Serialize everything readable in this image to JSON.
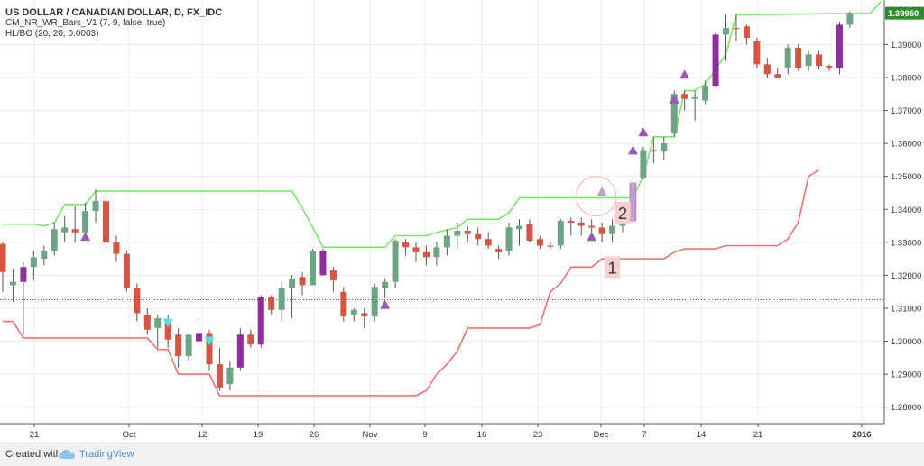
{
  "legend": {
    "title": "US DOLLAR / CANADIAN DOLLAR, D, FX_IDC",
    "line2": "CM_NR_WR_Bars_V1 (7, 9, false, true)",
    "line3": "HL/BO (20, 20, 0.0003)"
  },
  "footer": {
    "created": "Created with",
    "brand": "TradingView"
  },
  "colors": {
    "up": "#6ba583",
    "down": "#d75442",
    "narrow": "#8e2e9c",
    "wick": "#555555",
    "highline": "#77e86b",
    "lowline": "#f07070",
    "marker": "#9b59b6",
    "marker_light": "#c39bd3",
    "cyan": "#4fe0e8",
    "price_label": "#2c8c2c"
  },
  "chart_data": {
    "type": "candlestick",
    "x_ticks": [
      "21",
      "Oct",
      "12",
      "19",
      "26",
      "Nov",
      "9",
      "16",
      "23",
      "Dec",
      "7",
      "14",
      "21",
      "2016"
    ],
    "ylim": [
      1.275,
      1.4035
    ],
    "y_ticks": [
      "1.28000",
      "1.29000",
      "1.30000",
      "1.31000",
      "1.32000",
      "1.33000",
      "1.34000",
      "1.35000",
      "1.36000",
      "1.37000",
      "1.38000",
      "1.39000"
    ],
    "last_price": "1.39950",
    "hline": 1.3126,
    "candles": [
      {
        "o": 1.3295,
        "h": 1.33,
        "l": 1.315,
        "c": 1.321,
        "k": "down"
      },
      {
        "o": 1.317,
        "h": 1.322,
        "l": 1.312,
        "c": 1.318,
        "k": "up"
      },
      {
        "o": 1.318,
        "h": 1.324,
        "l": 1.302,
        "c": 1.3225,
        "k": "narrow"
      },
      {
        "o": 1.3225,
        "h": 1.3275,
        "l": 1.3185,
        "c": 1.3255,
        "k": "up"
      },
      {
        "o": 1.325,
        "h": 1.329,
        "l": 1.323,
        "c": 1.3275,
        "k": "up"
      },
      {
        "o": 1.3275,
        "h": 1.336,
        "l": 1.326,
        "c": 1.334,
        "k": "up"
      },
      {
        "o": 1.333,
        "h": 1.338,
        "l": 1.33,
        "c": 1.3345,
        "k": "up"
      },
      {
        "o": 1.334,
        "h": 1.341,
        "l": 1.33,
        "c": 1.333,
        "k": "down"
      },
      {
        "o": 1.333,
        "h": 1.342,
        "l": 1.331,
        "c": 1.3395,
        "k": "up"
      },
      {
        "o": 1.3395,
        "h": 1.346,
        "l": 1.336,
        "c": 1.3425,
        "k": "up"
      },
      {
        "o": 1.3425,
        "h": 1.343,
        "l": 1.328,
        "c": 1.33,
        "k": "down"
      },
      {
        "o": 1.33,
        "h": 1.332,
        "l": 1.324,
        "c": 1.3265,
        "k": "down"
      },
      {
        "o": 1.3265,
        "h": 1.3275,
        "l": 1.315,
        "c": 1.316,
        "k": "down"
      },
      {
        "o": 1.316,
        "h": 1.3175,
        "l": 1.306,
        "c": 1.3085,
        "k": "down"
      },
      {
        "o": 1.308,
        "h": 1.31,
        "l": 1.302,
        "c": 1.3035,
        "k": "down"
      },
      {
        "o": 1.304,
        "h": 1.308,
        "l": 1.298,
        "c": 1.307,
        "k": "up"
      },
      {
        "o": 1.3065,
        "h": 1.308,
        "l": 1.298,
        "c": 1.3005,
        "k": "down"
      },
      {
        "o": 1.302,
        "h": 1.304,
        "l": 1.292,
        "c": 1.2955,
        "k": "down"
      },
      {
        "o": 1.2955,
        "h": 1.302,
        "l": 1.294,
        "c": 1.302,
        "k": "up"
      },
      {
        "o": 1.3025,
        "h": 1.307,
        "l": 1.3,
        "c": 1.3,
        "k": "narrow"
      },
      {
        "o": 1.3025,
        "h": 1.3035,
        "l": 1.291,
        "c": 1.293,
        "k": "down"
      },
      {
        "o": 1.293,
        "h": 1.298,
        "l": 1.285,
        "c": 1.286,
        "k": "down"
      },
      {
        "o": 1.287,
        "h": 1.294,
        "l": 1.285,
        "c": 1.292,
        "k": "up"
      },
      {
        "o": 1.292,
        "h": 1.304,
        "l": 1.291,
        "c": 1.302,
        "k": "narrow"
      },
      {
        "o": 1.302,
        "h": 1.3035,
        "l": 1.298,
        "c": 1.299,
        "k": "down"
      },
      {
        "o": 1.299,
        "h": 1.314,
        "l": 1.298,
        "c": 1.3135,
        "k": "narrow"
      },
      {
        "o": 1.3135,
        "h": 1.314,
        "l": 1.308,
        "c": 1.3095,
        "k": "down"
      },
      {
        "o": 1.3095,
        "h": 1.318,
        "l": 1.306,
        "c": 1.316,
        "k": "up"
      },
      {
        "o": 1.316,
        "h": 1.32,
        "l": 1.307,
        "c": 1.319,
        "k": "up"
      },
      {
        "o": 1.3195,
        "h": 1.321,
        "l": 1.314,
        "c": 1.317,
        "k": "down"
      },
      {
        "o": 1.317,
        "h": 1.328,
        "l": 1.317,
        "c": 1.3275,
        "k": "up"
      },
      {
        "o": 1.3275,
        "h": 1.328,
        "l": 1.32,
        "c": 1.32,
        "k": "narrow"
      },
      {
        "o": 1.3215,
        "h": 1.3225,
        "l": 1.315,
        "c": 1.3185,
        "k": "down"
      },
      {
        "o": 1.315,
        "h": 1.3165,
        "l": 1.306,
        "c": 1.3075,
        "k": "down"
      },
      {
        "o": 1.308,
        "h": 1.31,
        "l": 1.306,
        "c": 1.3095,
        "k": "up"
      },
      {
        "o": 1.3085,
        "h": 1.31,
        "l": 1.304,
        "c": 1.3075,
        "k": "down"
      },
      {
        "o": 1.3075,
        "h": 1.3175,
        "l": 1.306,
        "c": 1.3165,
        "k": "up"
      },
      {
        "o": 1.316,
        "h": 1.319,
        "l": 1.313,
        "c": 1.318,
        "k": "up"
      },
      {
        "o": 1.318,
        "h": 1.331,
        "l": 1.316,
        "c": 1.3305,
        "k": "up"
      },
      {
        "o": 1.33,
        "h": 1.331,
        "l": 1.326,
        "c": 1.3285,
        "k": "down"
      },
      {
        "o": 1.3285,
        "h": 1.33,
        "l": 1.324,
        "c": 1.327,
        "k": "down"
      },
      {
        "o": 1.327,
        "h": 1.329,
        "l": 1.323,
        "c": 1.3255,
        "k": "down"
      },
      {
        "o": 1.3255,
        "h": 1.33,
        "l": 1.323,
        "c": 1.3285,
        "k": "up"
      },
      {
        "o": 1.3285,
        "h": 1.334,
        "l": 1.326,
        "c": 1.332,
        "k": "up"
      },
      {
        "o": 1.332,
        "h": 1.336,
        "l": 1.328,
        "c": 1.3335,
        "k": "up"
      },
      {
        "o": 1.3335,
        "h": 1.335,
        "l": 1.33,
        "c": 1.3325,
        "k": "down"
      },
      {
        "o": 1.3325,
        "h": 1.3345,
        "l": 1.329,
        "c": 1.331,
        "k": "down"
      },
      {
        "o": 1.331,
        "h": 1.333,
        "l": 1.328,
        "c": 1.329,
        "k": "down"
      },
      {
        "o": 1.328,
        "h": 1.329,
        "l": 1.325,
        "c": 1.327,
        "k": "down"
      },
      {
        "o": 1.3275,
        "h": 1.336,
        "l": 1.326,
        "c": 1.3345,
        "k": "up"
      },
      {
        "o": 1.334,
        "h": 1.337,
        "l": 1.329,
        "c": 1.335,
        "k": "up"
      },
      {
        "o": 1.3355,
        "h": 1.337,
        "l": 1.33,
        "c": 1.3305,
        "k": "down"
      },
      {
        "o": 1.331,
        "h": 1.332,
        "l": 1.328,
        "c": 1.329,
        "k": "down"
      },
      {
        "o": 1.329,
        "h": 1.33,
        "l": 1.328,
        "c": 1.329,
        "k": "down"
      },
      {
        "o": 1.329,
        "h": 1.337,
        "l": 1.328,
        "c": 1.3365,
        "k": "up"
      },
      {
        "o": 1.3365,
        "h": 1.3375,
        "l": 1.332,
        "c": 1.336,
        "k": "down"
      },
      {
        "o": 1.336,
        "h": 1.3375,
        "l": 1.332,
        "c": 1.335,
        "k": "down"
      },
      {
        "o": 1.335,
        "h": 1.337,
        "l": 1.332,
        "c": 1.3345,
        "k": "down"
      },
      {
        "o": 1.3345,
        "h": 1.336,
        "l": 1.33,
        "c": 1.3325,
        "k": "down"
      },
      {
        "o": 1.3325,
        "h": 1.337,
        "l": 1.33,
        "c": 1.335,
        "k": "up"
      },
      {
        "o": 1.335,
        "h": 1.3365,
        "l": 1.333,
        "c": 1.336,
        "k": "up"
      },
      {
        "o": 1.3365,
        "h": 1.35,
        "l": 1.336,
        "c": 1.348,
        "k": "narrow_light"
      },
      {
        "o": 1.3495,
        "h": 1.359,
        "l": 1.349,
        "c": 1.358,
        "k": "up"
      },
      {
        "o": 1.358,
        "h": 1.362,
        "l": 1.354,
        "c": 1.3575,
        "k": "down"
      },
      {
        "o": 1.3575,
        "h": 1.362,
        "l": 1.355,
        "c": 1.36,
        "k": "up"
      },
      {
        "o": 1.363,
        "h": 1.376,
        "l": 1.362,
        "c": 1.375,
        "k": "up"
      },
      {
        "o": 1.375,
        "h": 1.376,
        "l": 1.37,
        "c": 1.3735,
        "k": "down"
      },
      {
        "o": 1.3735,
        "h": 1.376,
        "l": 1.367,
        "c": 1.374,
        "k": "up"
      },
      {
        "o": 1.373,
        "h": 1.379,
        "l": 1.372,
        "c": 1.3775,
        "k": "up"
      },
      {
        "o": 1.3775,
        "h": 1.394,
        "l": 1.377,
        "c": 1.393,
        "k": "narrow"
      },
      {
        "o": 1.393,
        "h": 1.399,
        "l": 1.385,
        "c": 1.395,
        "k": "up"
      },
      {
        "o": 1.395,
        "h": 1.399,
        "l": 1.391,
        "c": 1.395,
        "k": "down"
      },
      {
        "o": 1.3955,
        "h": 1.396,
        "l": 1.39,
        "c": 1.392,
        "k": "down"
      },
      {
        "o": 1.391,
        "h": 1.392,
        "l": 1.383,
        "c": 1.384,
        "k": "down"
      },
      {
        "o": 1.384,
        "h": 1.386,
        "l": 1.38,
        "c": 1.381,
        "k": "down"
      },
      {
        "o": 1.381,
        "h": 1.383,
        "l": 1.38,
        "c": 1.38,
        "k": "down"
      },
      {
        "o": 1.383,
        "h": 1.39,
        "l": 1.381,
        "c": 1.389,
        "k": "up"
      },
      {
        "o": 1.389,
        "h": 1.39,
        "l": 1.382,
        "c": 1.383,
        "k": "down"
      },
      {
        "o": 1.3835,
        "h": 1.388,
        "l": 1.382,
        "c": 1.387,
        "k": "up"
      },
      {
        "o": 1.387,
        "h": 1.388,
        "l": 1.3825,
        "c": 1.3835,
        "k": "down"
      },
      {
        "o": 1.3835,
        "h": 1.384,
        "l": 1.382,
        "c": 1.383,
        "k": "down"
      },
      {
        "o": 1.383,
        "h": 1.397,
        "l": 1.381,
        "c": 1.396,
        "k": "narrow"
      },
      {
        "o": 1.396,
        "h": 1.4,
        "l": 1.395,
        "c": 1.3995,
        "k": "up"
      }
    ],
    "high_band": [
      [
        0,
        1.3355
      ],
      [
        3,
        1.3355
      ],
      [
        4,
        1.335
      ],
      [
        5,
        1.336
      ],
      [
        6,
        1.3415
      ],
      [
        7,
        1.3415
      ],
      [
        8,
        1.3415
      ],
      [
        9,
        1.3455
      ],
      [
        21,
        1.3455
      ],
      [
        27,
        1.3455
      ],
      [
        28,
        1.3455
      ],
      [
        29,
        1.3405
      ],
      [
        30,
        1.3345
      ],
      [
        31,
        1.3285
      ],
      [
        37,
        1.3285
      ],
      [
        38,
        1.332
      ],
      [
        41,
        1.332
      ],
      [
        42,
        1.333
      ],
      [
        44,
        1.3345
      ],
      [
        45,
        1.337
      ],
      [
        48,
        1.337
      ],
      [
        49,
        1.339
      ],
      [
        50,
        1.3435
      ],
      [
        61,
        1.3435
      ],
      [
        62,
        1.35
      ],
      [
        63,
        1.362
      ],
      [
        65,
        1.362
      ],
      [
        66,
        1.376
      ],
      [
        67,
        1.376
      ],
      [
        68,
        1.378
      ],
      [
        70,
        1.387
      ],
      [
        71,
        1.399
      ],
      [
        84,
        1.3995
      ],
      [
        85,
        1.403
      ]
    ],
    "low_band": [
      [
        0,
        1.306
      ],
      [
        1,
        1.306
      ],
      [
        2,
        1.301
      ],
      [
        12,
        1.301
      ],
      [
        13,
        1.301
      ],
      [
        14,
        1.301
      ],
      [
        15,
        1.2975
      ],
      [
        16,
        1.2975
      ],
      [
        17,
        1.29
      ],
      [
        20,
        1.29
      ],
      [
        21,
        1.2835
      ],
      [
        40,
        1.2835
      ],
      [
        41,
        1.285
      ],
      [
        42,
        1.29
      ],
      [
        43,
        1.293
      ],
      [
        44,
        1.297
      ],
      [
        45,
        1.304
      ],
      [
        51,
        1.304
      ],
      [
        52,
        1.305
      ],
      [
        53,
        1.315
      ],
      [
        54,
        1.3175
      ],
      [
        55,
        1.3225
      ],
      [
        57,
        1.3225
      ],
      [
        58,
        1.325
      ],
      [
        64,
        1.325
      ],
      [
        65,
        1.327
      ],
      [
        66,
        1.328
      ],
      [
        69,
        1.328
      ],
      [
        70,
        1.329
      ],
      [
        75,
        1.329
      ],
      [
        76,
        1.331
      ],
      [
        77,
        1.336
      ],
      [
        78,
        1.35
      ],
      [
        79,
        1.352
      ]
    ],
    "up_markers": [
      [
        8,
        1.3318
      ],
      [
        37,
        1.3112
      ],
      [
        57,
        1.3318
      ],
      [
        58,
        1.3455
      ],
      [
        61,
        1.358
      ],
      [
        62,
        1.3635
      ],
      [
        65,
        1.3735
      ],
      [
        66,
        1.381
      ]
    ],
    "down_markers": [
      [
        16,
        1.3055
      ],
      [
        20,
        1.3
      ]
    ],
    "annotations": [
      {
        "label": "1",
        "idx": 58,
        "price": 1.3225
      },
      {
        "label": "2",
        "idx": 59,
        "price": 1.339
      }
    ]
  }
}
